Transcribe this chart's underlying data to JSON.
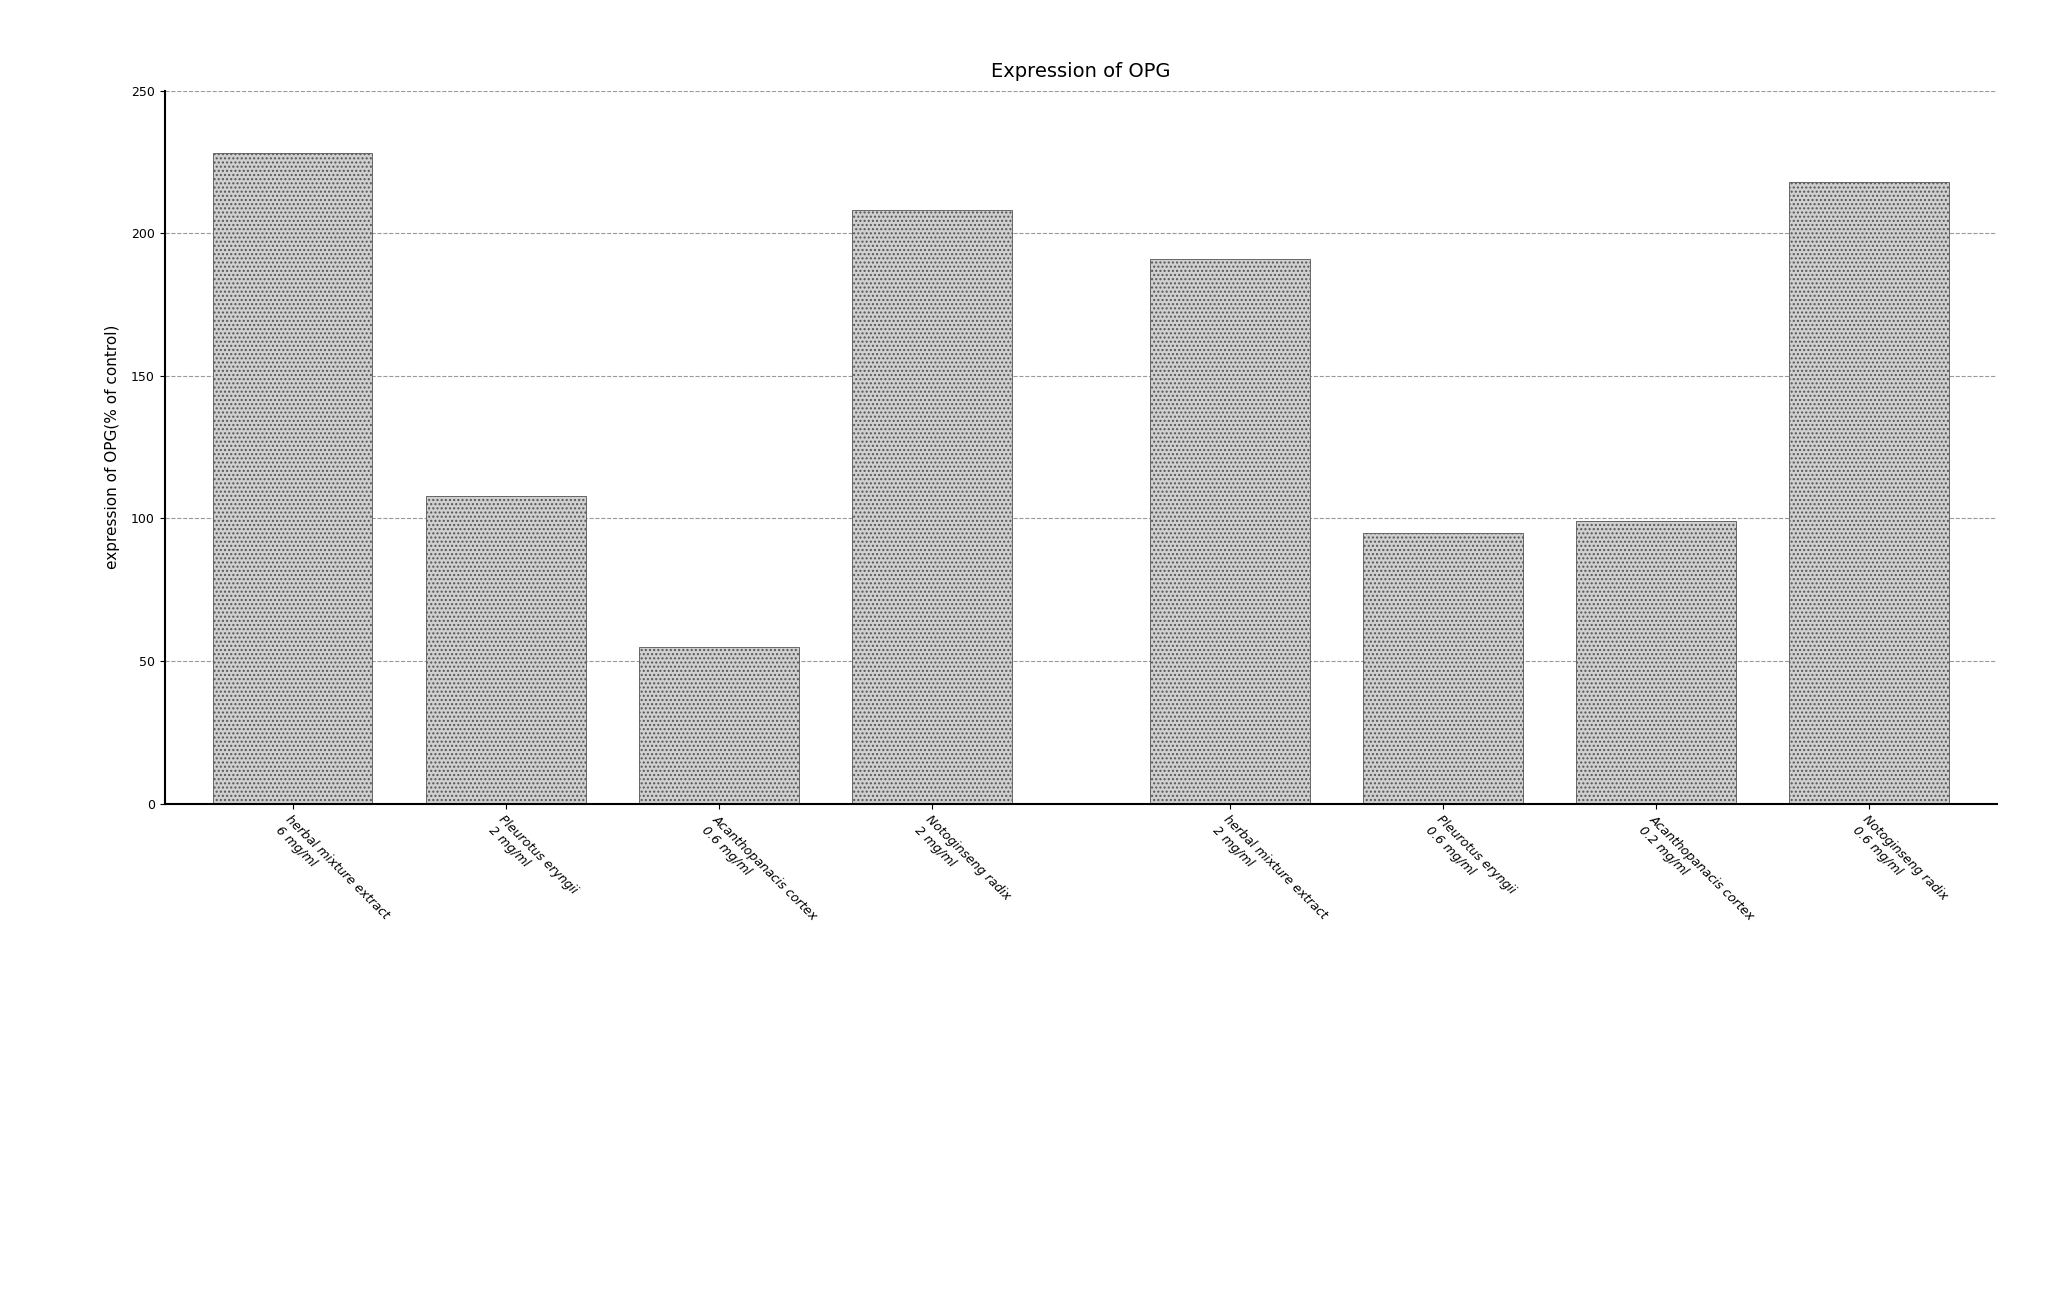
{
  "title": "Expression of OPG",
  "ylabel": "expression of OPG(% of control)",
  "ylim": [
    0,
    250
  ],
  "yticks": [
    0,
    50,
    100,
    150,
    200,
    250
  ],
  "categories": [
    "herbal mixture extract\n6 mg/ml",
    "Pleurotus eryngii\n2 mg/ml",
    "Acanthopanacis cortex\n0.6 mg/ml",
    "Notoginseng radix\n2 mg/ml",
    "herbal mixture extract\n2 mg/ml",
    "Pleurotus eryngii\n0.6 mg/ml",
    "Acanthopanacis cortex\n0.2 mg/ml",
    "Notoginseng radix\n0.6 mg/ml"
  ],
  "values": [
    228,
    108,
    55,
    208,
    191,
    95,
    99,
    218
  ],
  "x_positions": [
    0,
    1,
    2,
    3,
    4.4,
    5.4,
    6.4,
    7.4
  ],
  "bar_color": "#d0d0d0",
  "bar_hatch": "....",
  "bar_edge_color": "#555555",
  "background_color": "#ffffff",
  "title_fontsize": 14,
  "label_fontsize": 11,
  "tick_fontsize": 9,
  "grid_color": "#999999",
  "grid_linestyle": "--",
  "grid_linewidth": 0.8,
  "bar_width": 0.75
}
